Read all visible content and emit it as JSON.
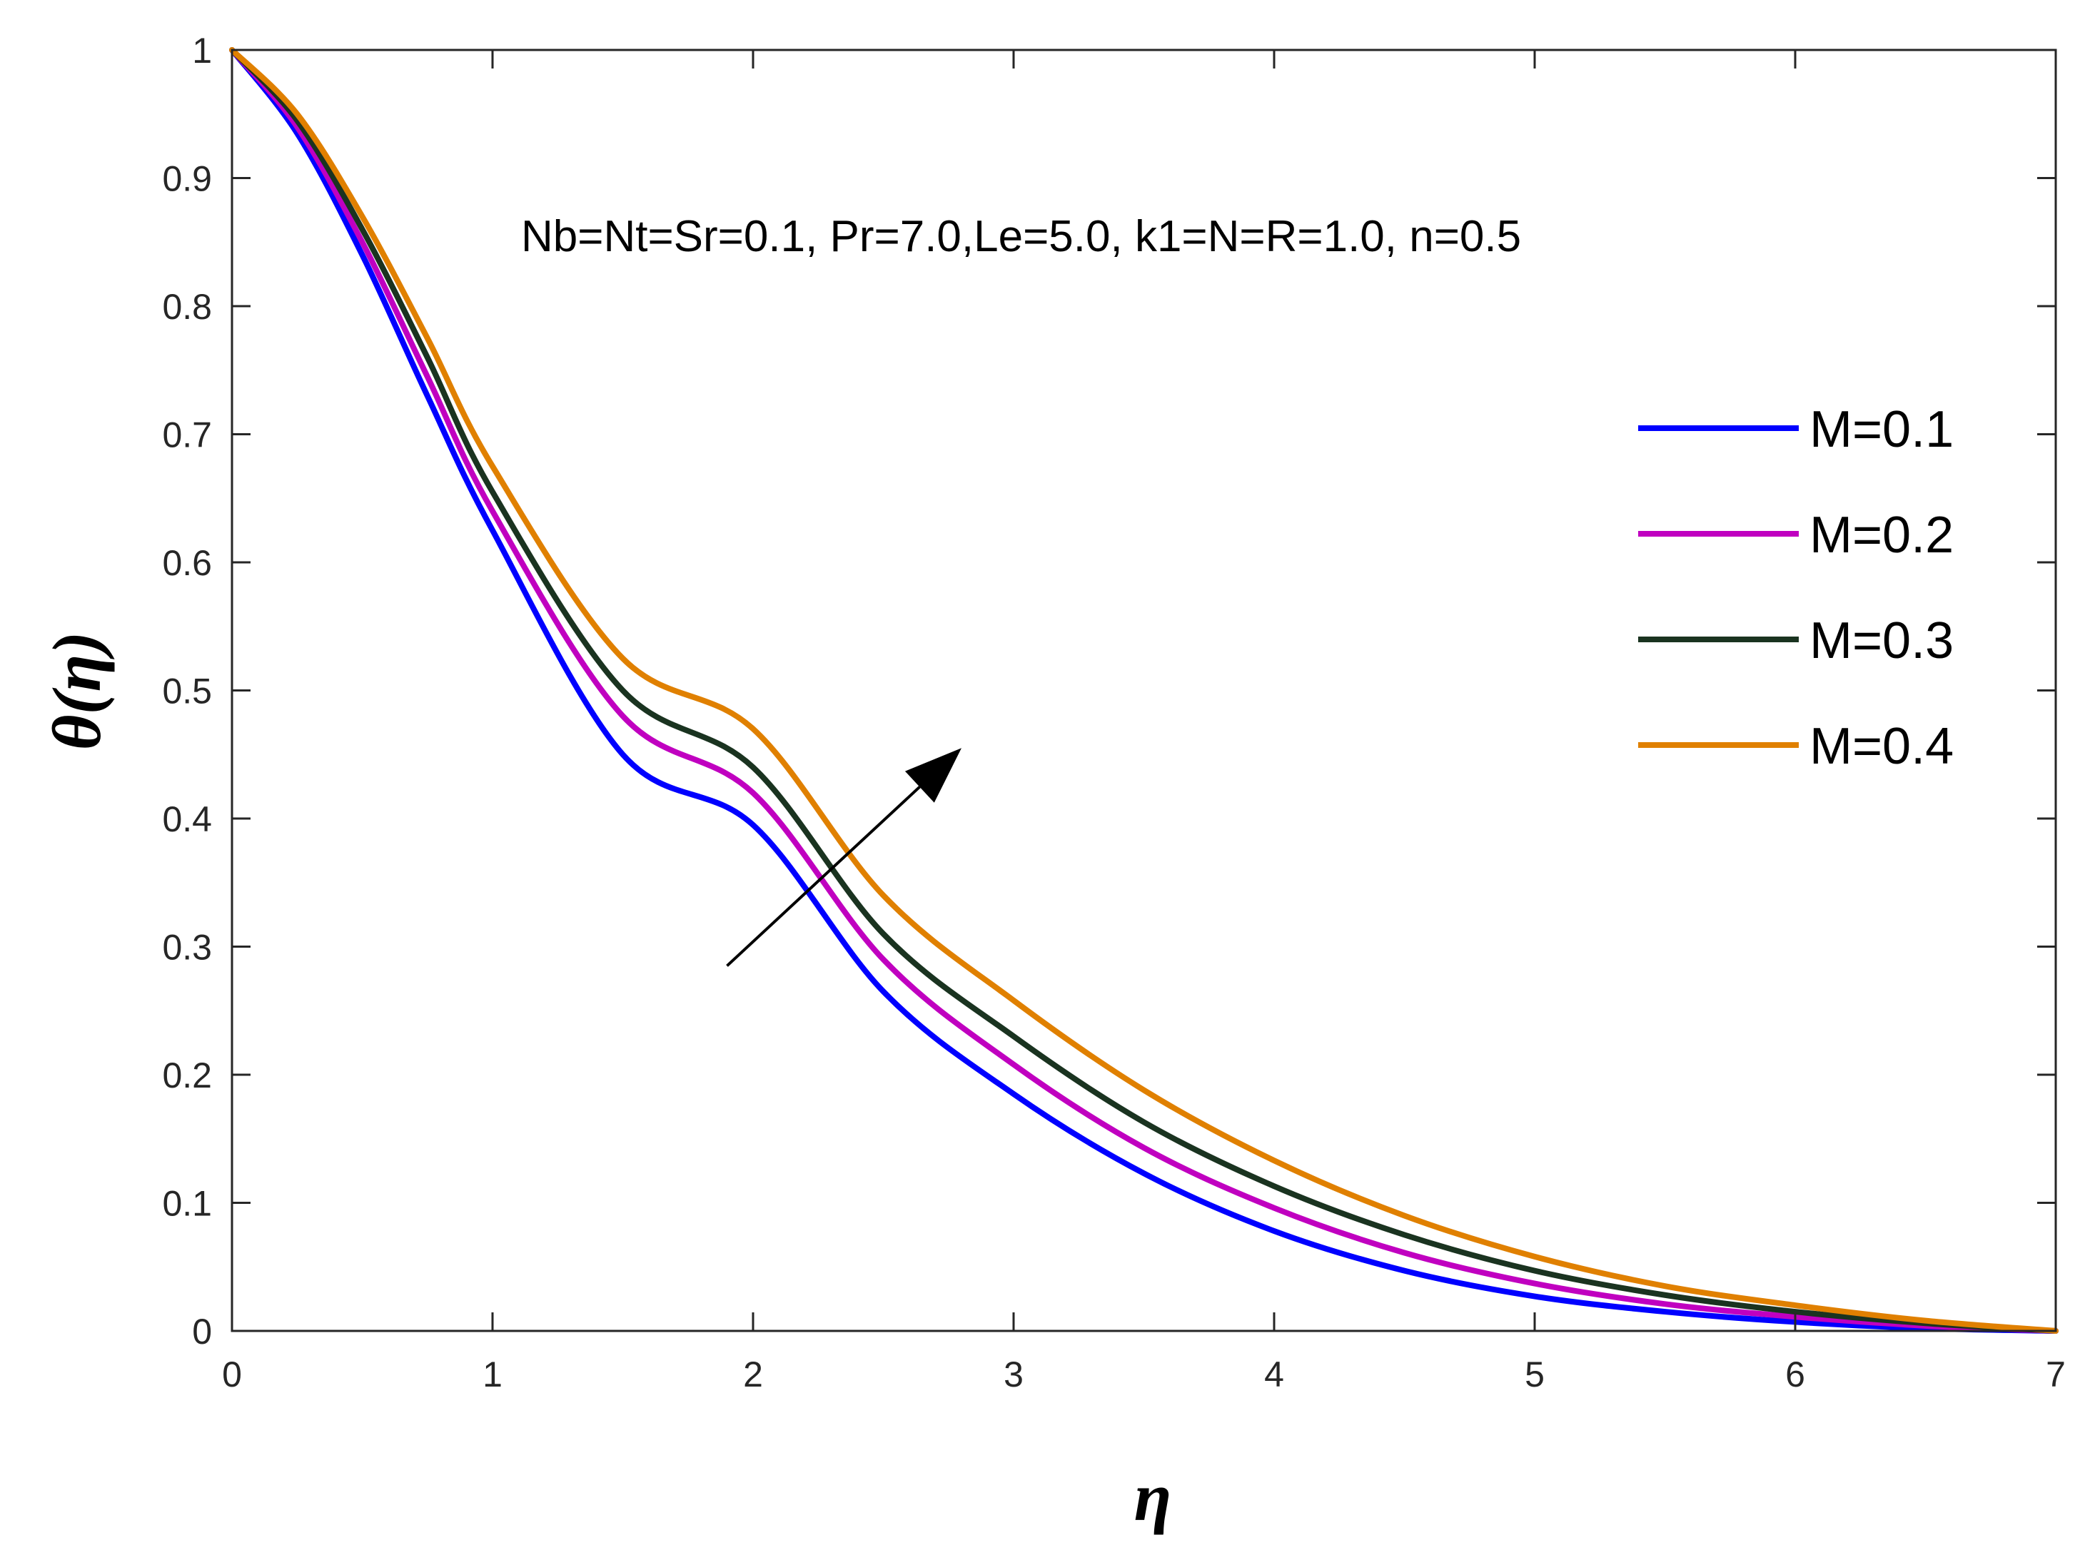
{
  "chart_data": {
    "type": "line",
    "xlabel": "η",
    "ylabel": "θ(η)",
    "xlim": [
      0,
      7
    ],
    "ylim": [
      0,
      1
    ],
    "xticks": [
      "0",
      "1",
      "2",
      "3",
      "4",
      "5",
      "6",
      "7"
    ],
    "yticks": [
      "0",
      "0.1",
      "0.2",
      "0.3",
      "0.4",
      "0.5",
      "0.6",
      "0.7",
      "0.8",
      "0.9",
      "1"
    ],
    "grid": false,
    "legend_position": "right",
    "annotation": "Nb=Nt=Sr=0.1, Pr=7.0,Le=5.0, k1=N=R=1.0, n=0.5",
    "arrow": {
      "from": [
        1.9,
        0.285
      ],
      "to": [
        2.8,
        0.455
      ]
    },
    "x": [
      0,
      0.25,
      0.5,
      0.75,
      1,
      1.5,
      2,
      2.5,
      3,
      3.5,
      4,
      4.5,
      5,
      5.5,
      6,
      6.5,
      7
    ],
    "series": [
      {
        "name": "M=0.1",
        "color": "#0000ff",
        "values": [
          1,
          0.935,
          0.84,
          0.73,
          0.625,
          0.45,
          0.395,
          0.265,
          0.185,
          0.123,
          0.078,
          0.047,
          0.027,
          0.015,
          0.007,
          0.002,
          0
        ]
      },
      {
        "name": "M=0.2",
        "color": "#c000c0",
        "values": [
          1,
          0.94,
          0.85,
          0.745,
          0.64,
          0.48,
          0.42,
          0.29,
          0.208,
          0.143,
          0.096,
          0.061,
          0.037,
          0.021,
          0.011,
          0.004,
          0
        ]
      },
      {
        "name": "M=0.3",
        "color": "#1a3320",
        "values": [
          1,
          0.945,
          0.86,
          0.76,
          0.655,
          0.5,
          0.44,
          0.31,
          0.23,
          0.163,
          0.113,
          0.075,
          0.047,
          0.028,
          0.015,
          0.006,
          0
        ]
      },
      {
        "name": "M=0.4",
        "color": "#e08000",
        "values": [
          1,
          0.95,
          0.87,
          0.775,
          0.675,
          0.525,
          0.47,
          0.34,
          0.258,
          0.188,
          0.133,
          0.09,
          0.058,
          0.035,
          0.02,
          0.008,
          0
        ]
      }
    ]
  }
}
